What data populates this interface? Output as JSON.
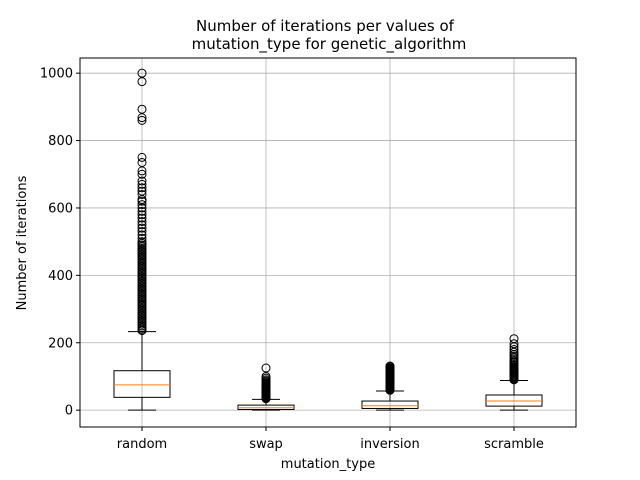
{
  "chart_data": {
    "type": "boxplot",
    "title_line1": "Number of iterations per values of",
    "title_line2": "mutation_type for genetic_algorithm",
    "xlabel": "mutation_type",
    "ylabel": "Number of iterations",
    "ylim": [
      -50,
      1045
    ],
    "yticks": [
      0,
      200,
      400,
      600,
      800,
      1000
    ],
    "ytick_labels": [
      "0",
      "200",
      "400",
      "600",
      "800",
      "1000"
    ],
    "grid": true,
    "colors": {
      "box": "#000000",
      "median": "#ff7f0e",
      "grid": "#b0b0b0"
    },
    "categories": [
      "random",
      "swap",
      "inversion",
      "scramble"
    ],
    "boxes": [
      {
        "name": "random",
        "whisker_low": 0,
        "q1": 38,
        "median": 75,
        "q3": 117,
        "whisker_high": 233,
        "fliers": [
          236,
          240,
          245,
          250,
          255,
          260,
          265,
          270,
          275,
          280,
          285,
          290,
          295,
          300,
          305,
          310,
          315,
          320,
          325,
          330,
          335,
          340,
          345,
          350,
          355,
          360,
          365,
          370,
          375,
          380,
          385,
          390,
          395,
          400,
          405,
          410,
          415,
          420,
          425,
          430,
          435,
          440,
          445,
          450,
          455,
          460,
          465,
          470,
          475,
          480,
          485,
          490,
          495,
          500,
          510,
          520,
          530,
          540,
          550,
          560,
          570,
          580,
          590,
          600,
          610,
          620,
          625,
          640,
          650,
          660,
          670,
          680,
          700,
          710,
          735,
          750,
          860,
          868,
          893,
          975,
          1000
        ]
      },
      {
        "name": "swap",
        "whisker_low": 0,
        "q1": 2,
        "median": 7,
        "q3": 15,
        "whisker_high": 32,
        "fliers": [
          34,
          36,
          38,
          40,
          42,
          44,
          46,
          48,
          50,
          52,
          54,
          56,
          58,
          60,
          62,
          64,
          66,
          68,
          70,
          72,
          74,
          76,
          78,
          80,
          83,
          86,
          90,
          95,
          100,
          125
        ]
      },
      {
        "name": "inversion",
        "whisker_low": 0,
        "q1": 5,
        "median": 13,
        "q3": 27,
        "whisker_high": 57,
        "fliers": [
          59,
          61,
          63,
          65,
          67,
          69,
          71,
          73,
          75,
          77,
          79,
          81,
          83,
          85,
          87,
          89,
          91,
          93,
          95,
          97,
          99,
          101,
          103,
          105,
          107,
          109,
          111,
          113,
          115,
          117,
          119,
          121,
          123,
          125,
          128,
          131
        ]
      },
      {
        "name": "scramble",
        "whisker_low": 0,
        "q1": 12,
        "median": 27,
        "q3": 45,
        "whisker_high": 88,
        "fliers": [
          90,
          93,
          96,
          99,
          102,
          105,
          108,
          111,
          114,
          117,
          120,
          123,
          126,
          130,
          134,
          138,
          142,
          146,
          150,
          155,
          160,
          165,
          172,
          180,
          188,
          197,
          212
        ]
      }
    ]
  }
}
